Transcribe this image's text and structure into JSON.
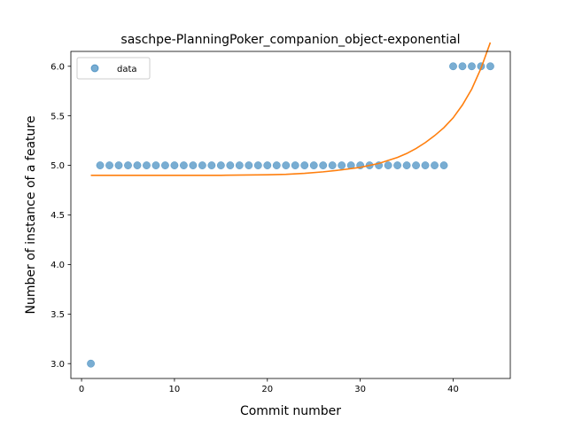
{
  "chart_data": {
    "type": "scatter",
    "title": "saschpe-PlanningPoker_companion_object-exponential",
    "xlabel": "Commit number",
    "ylabel": "Number of instance of a feature",
    "xlim": [
      -1.15,
      46.15
    ],
    "ylim": [
      2.85,
      6.15
    ],
    "xticks": [
      0,
      10,
      20,
      30,
      40
    ],
    "yticks": [
      3.0,
      3.5,
      4.0,
      4.5,
      5.0,
      5.5,
      6.0
    ],
    "xtick_labels": [
      "0",
      "10",
      "20",
      "30",
      "40"
    ],
    "ytick_labels": [
      "3.0",
      "3.5",
      "4.0",
      "4.5",
      "5.0",
      "5.5",
      "6.0"
    ],
    "grid": false,
    "legend": {
      "position": "top-left",
      "entries": [
        "data"
      ]
    },
    "series": [
      {
        "name": "data",
        "kind": "scatter",
        "color": "#1f77b4",
        "x": [
          1,
          2,
          3,
          4,
          5,
          6,
          7,
          8,
          9,
          10,
          11,
          12,
          13,
          14,
          15,
          16,
          17,
          18,
          19,
          20,
          21,
          22,
          23,
          24,
          25,
          26,
          27,
          28,
          29,
          30,
          31,
          32,
          33,
          34,
          35,
          36,
          37,
          38,
          39,
          40,
          41,
          42,
          43,
          44
        ],
        "y": [
          3,
          5,
          5,
          5,
          5,
          5,
          5,
          5,
          5,
          5,
          5,
          5,
          5,
          5,
          5,
          5,
          5,
          5,
          5,
          5,
          5,
          5,
          5,
          5,
          5,
          5,
          5,
          5,
          5,
          5,
          5,
          5,
          5,
          5,
          5,
          5,
          5,
          5,
          5,
          6,
          6,
          6,
          6,
          6
        ]
      },
      {
        "kind": "line",
        "color": "#ff7f0e",
        "x": [
          1,
          5,
          10,
          15,
          20,
          22,
          24,
          26,
          28,
          30,
          32,
          34,
          35,
          36,
          37,
          38,
          39,
          40,
          41,
          42,
          43,
          44
        ],
        "y": [
          4.9,
          4.9,
          4.9,
          4.9,
          4.905,
          4.91,
          4.92,
          4.935,
          4.955,
          4.98,
          5.02,
          5.08,
          5.12,
          5.17,
          5.23,
          5.3,
          5.38,
          5.48,
          5.61,
          5.77,
          5.98,
          6.24
        ]
      }
    ]
  }
}
